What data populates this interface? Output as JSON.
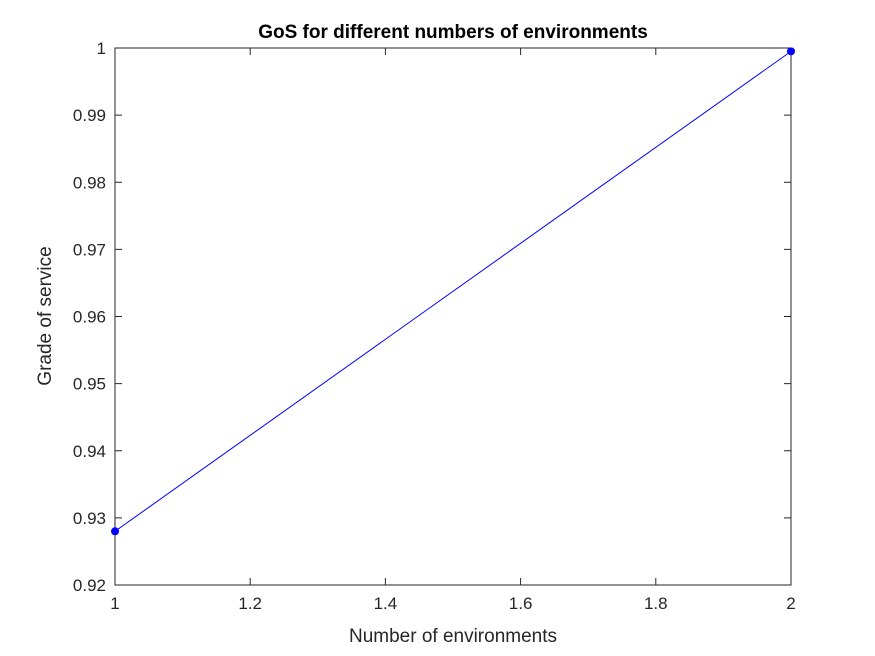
{
  "chart_data": {
    "type": "line",
    "title": "GoS for different numbers of environments",
    "xlabel": "Number of environments",
    "ylabel": "Grade of service",
    "xlim": [
      1,
      2
    ],
    "ylim": [
      0.92,
      1
    ],
    "xticks": [
      "1",
      "1.2",
      "1.4",
      "1.6",
      "1.8",
      "2"
    ],
    "yticks": [
      "0.92",
      "0.93",
      "0.94",
      "0.95",
      "0.96",
      "0.97",
      "0.98",
      "0.99",
      "1"
    ],
    "grid": false,
    "legend": "none",
    "series": [
      {
        "color": "#0000ff",
        "marker": "dot",
        "x": [
          1,
          2
        ],
        "y": [
          0.928,
          0.9995
        ]
      }
    ]
  }
}
